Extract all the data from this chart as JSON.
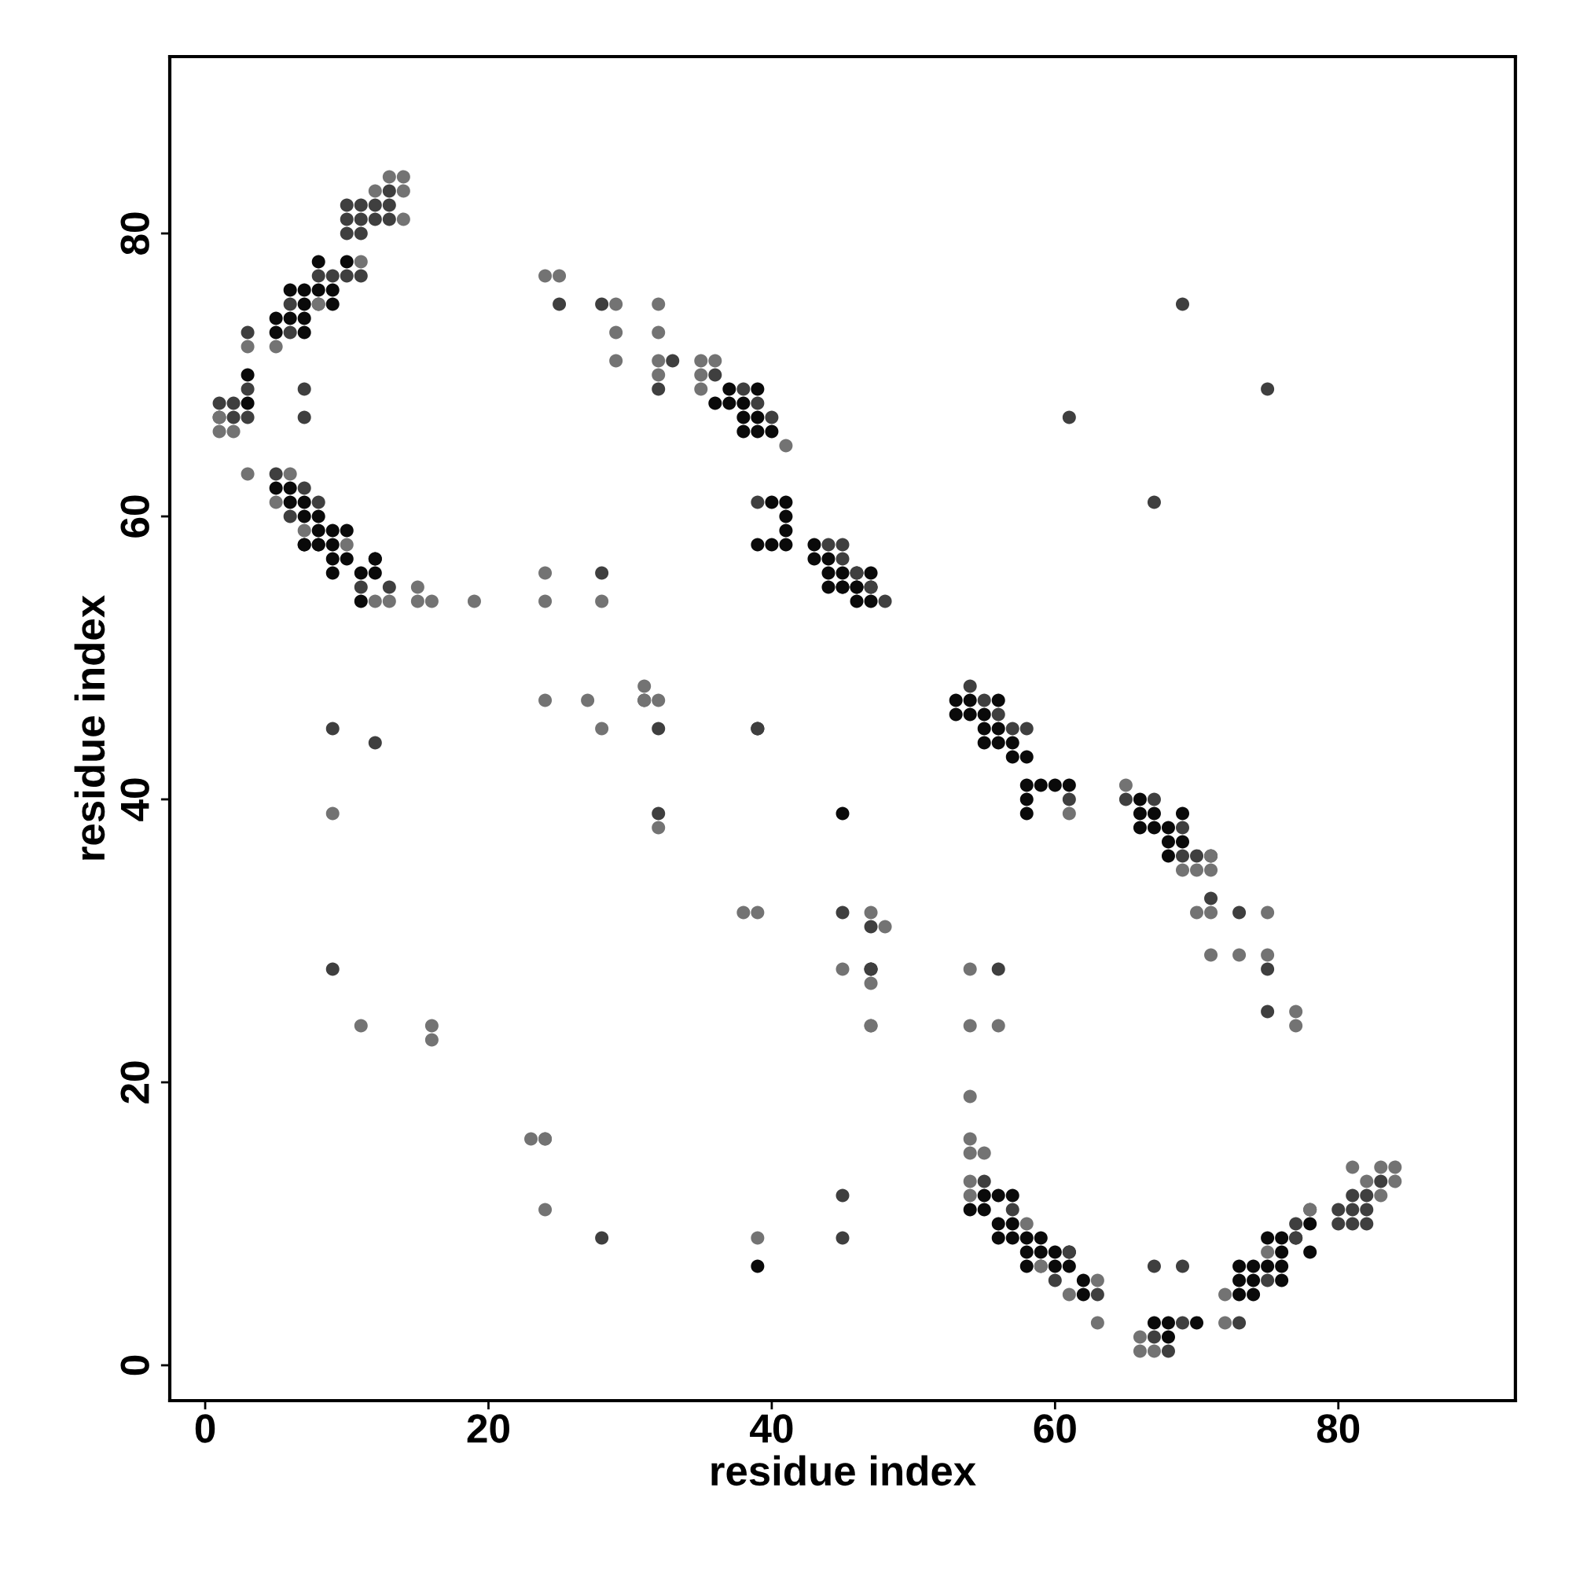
{
  "chart_data": {
    "type": "scatter",
    "xlabel": "residue index",
    "ylabel": "residue index",
    "xlim": [
      -2.5,
      92.5
    ],
    "ylim": [
      -2.5,
      92.5
    ],
    "xticks": [
      0,
      20,
      40,
      60,
      80
    ],
    "yticks": [
      0,
      20,
      40,
      60,
      80
    ],
    "marker": "circle",
    "series": [
      {
        "color": "#0a0a0a",
        "x": [
          8,
          10,
          6,
          7,
          8,
          9,
          7,
          9,
          5,
          6,
          7,
          5,
          7,
          3,
          3,
          5,
          6,
          6,
          7,
          7,
          8,
          7,
          8,
          8,
          9,
          10,
          7,
          8,
          9,
          9,
          10,
          11,
          12,
          12,
          11,
          37,
          39,
          36,
          37,
          38,
          38,
          39,
          38,
          39,
          40,
          40,
          41,
          41,
          41,
          39,
          40,
          41,
          43,
          43,
          44,
          46,
          47,
          44,
          45,
          45,
          46,
          44,
          45,
          46,
          47,
          46,
          47,
          53,
          54,
          56,
          53,
          54,
          55,
          55,
          56,
          55,
          56,
          57,
          57,
          58,
          58,
          59,
          60,
          61,
          58,
          58,
          66,
          66,
          67,
          69,
          66,
          67,
          68,
          68,
          69,
          68,
          39,
          45,
          55,
          56,
          57,
          54,
          55,
          56,
          57,
          56,
          57,
          58,
          59,
          58,
          59,
          60,
          58,
          60,
          61,
          61,
          62,
          62,
          67,
          68,
          70,
          68,
          73,
          74,
          73,
          74,
          76,
          73,
          74,
          75,
          76,
          76,
          78,
          75,
          76,
          77,
          78,
          39,
          47,
          12,
          9
        ],
        "values": [
          78,
          78,
          76,
          76,
          76,
          76,
          75,
          75,
          74,
          74,
          74,
          73,
          73,
          70,
          68,
          62,
          62,
          61,
          61,
          60,
          60,
          58,
          58,
          59,
          59,
          59,
          58,
          58,
          58,
          57,
          57,
          56,
          56,
          57,
          54,
          69,
          69,
          68,
          68,
          68,
          67,
          67,
          66,
          66,
          66,
          61,
          61,
          60,
          59,
          58,
          58,
          58,
          58,
          57,
          57,
          56,
          56,
          56,
          56,
          55,
          55,
          55,
          55,
          55,
          55,
          54,
          54,
          47,
          47,
          47,
          46,
          46,
          46,
          45,
          45,
          44,
          44,
          44,
          43,
          43,
          41,
          41,
          41,
          41,
          40,
          39,
          40,
          39,
          39,
          39,
          38,
          38,
          38,
          37,
          37,
          36,
          45,
          39,
          12,
          12,
          12,
          11,
          11,
          10,
          10,
          9,
          9,
          9,
          9,
          8,
          8,
          8,
          7,
          7,
          8,
          7,
          6,
          5,
          3,
          3,
          3,
          2,
          5,
          5,
          6,
          6,
          6,
          7,
          7,
          7,
          7,
          8,
          8,
          9,
          9,
          9,
          10,
          7,
          28,
          57,
          56
        ]
      },
      {
        "color": "#3f3f3f",
        "x": [
          13,
          10,
          11,
          12,
          13,
          10,
          11,
          12,
          13,
          10,
          11,
          9,
          8,
          10,
          11,
          6,
          8,
          6,
          3,
          3,
          7,
          1,
          2,
          1,
          2,
          3,
          7,
          5,
          7,
          8,
          6,
          11,
          13,
          28,
          33,
          32,
          36,
          38,
          39,
          40,
          44,
          45,
          39,
          45,
          46,
          47,
          48,
          28,
          31,
          9,
          32,
          12,
          32,
          39,
          45,
          47,
          56,
          9,
          75,
          69,
          71,
          73,
          75,
          54,
          55,
          56,
          57,
          58,
          61,
          65,
          67,
          69,
          69,
          70,
          71,
          28,
          45,
          55,
          57,
          61,
          60,
          63,
          67,
          69,
          69,
          73,
          68,
          75,
          77,
          78,
          77,
          80,
          81,
          82,
          80,
          81,
          82,
          81,
          82,
          83,
          61,
          67,
          45,
          75,
          67,
          25,
          59,
          47
        ],
        "values": [
          83,
          82,
          82,
          82,
          82,
          81,
          81,
          81,
          81,
          80,
          80,
          77,
          77,
          77,
          77,
          75,
          75,
          73,
          73,
          69,
          69,
          68,
          68,
          67,
          67,
          67,
          67,
          63,
          62,
          61,
          60,
          55,
          55,
          75,
          71,
          69,
          70,
          69,
          68,
          67,
          58,
          58,
          61,
          57,
          56,
          55,
          54,
          56,
          47,
          45,
          45,
          44,
          39,
          45,
          32,
          31,
          28,
          28,
          25,
          75,
          33,
          32,
          28,
          48,
          47,
          46,
          45,
          45,
          40,
          40,
          40,
          38,
          36,
          36,
          36,
          9,
          9,
          13,
          11,
          8,
          6,
          5,
          2,
          7,
          3,
          3,
          1,
          6,
          9,
          11,
          10,
          10,
          10,
          10,
          11,
          11,
          11,
          12,
          12,
          13,
          67,
          61,
          12,
          69,
          7,
          75,
          7,
          28
        ]
      },
      {
        "color": "#737373",
        "x": [
          13,
          14,
          12,
          14,
          14,
          11,
          8,
          3,
          5,
          1,
          1,
          2,
          3,
          6,
          5,
          7,
          10,
          15,
          12,
          13,
          15,
          16,
          19,
          24,
          28,
          24,
          24,
          25,
          29,
          32,
          29,
          32,
          29,
          32,
          32,
          35,
          36,
          35,
          35,
          41,
          31,
          24,
          27,
          32,
          31,
          28,
          9,
          32,
          38,
          47,
          48,
          45,
          54,
          47,
          11,
          16,
          47,
          54,
          16,
          56,
          77,
          77,
          71,
          73,
          75,
          70,
          71,
          75,
          65,
          71,
          69,
          70,
          71,
          61,
          54,
          54,
          54,
          55,
          54,
          54,
          58,
          59,
          63,
          61,
          63,
          66,
          66,
          67,
          72,
          72,
          75,
          78,
          83,
          82,
          84,
          81,
          83,
          84,
          23,
          24,
          24,
          39,
          24,
          39,
          47
        ],
        "values": [
          84,
          84,
          83,
          83,
          81,
          78,
          75,
          72,
          72,
          67,
          66,
          66,
          63,
          63,
          61,
          59,
          58,
          55,
          54,
          54,
          54,
          54,
          54,
          54,
          54,
          56,
          77,
          77,
          75,
          75,
          73,
          73,
          71,
          71,
          70,
          71,
          71,
          70,
          69,
          65,
          48,
          47,
          47,
          47,
          47,
          45,
          39,
          38,
          32,
          32,
          31,
          28,
          28,
          27,
          24,
          24,
          24,
          24,
          23,
          24,
          25,
          24,
          29,
          29,
          29,
          32,
          32,
          32,
          41,
          35,
          35,
          35,
          36,
          39,
          19,
          16,
          15,
          15,
          13,
          12,
          10,
          7,
          3,
          5,
          6,
          2,
          1,
          1,
          3,
          5,
          8,
          11,
          12,
          13,
          13,
          14,
          14,
          14,
          16,
          16,
          11,
          9,
          16,
          32,
          24
        ]
      }
    ]
  }
}
